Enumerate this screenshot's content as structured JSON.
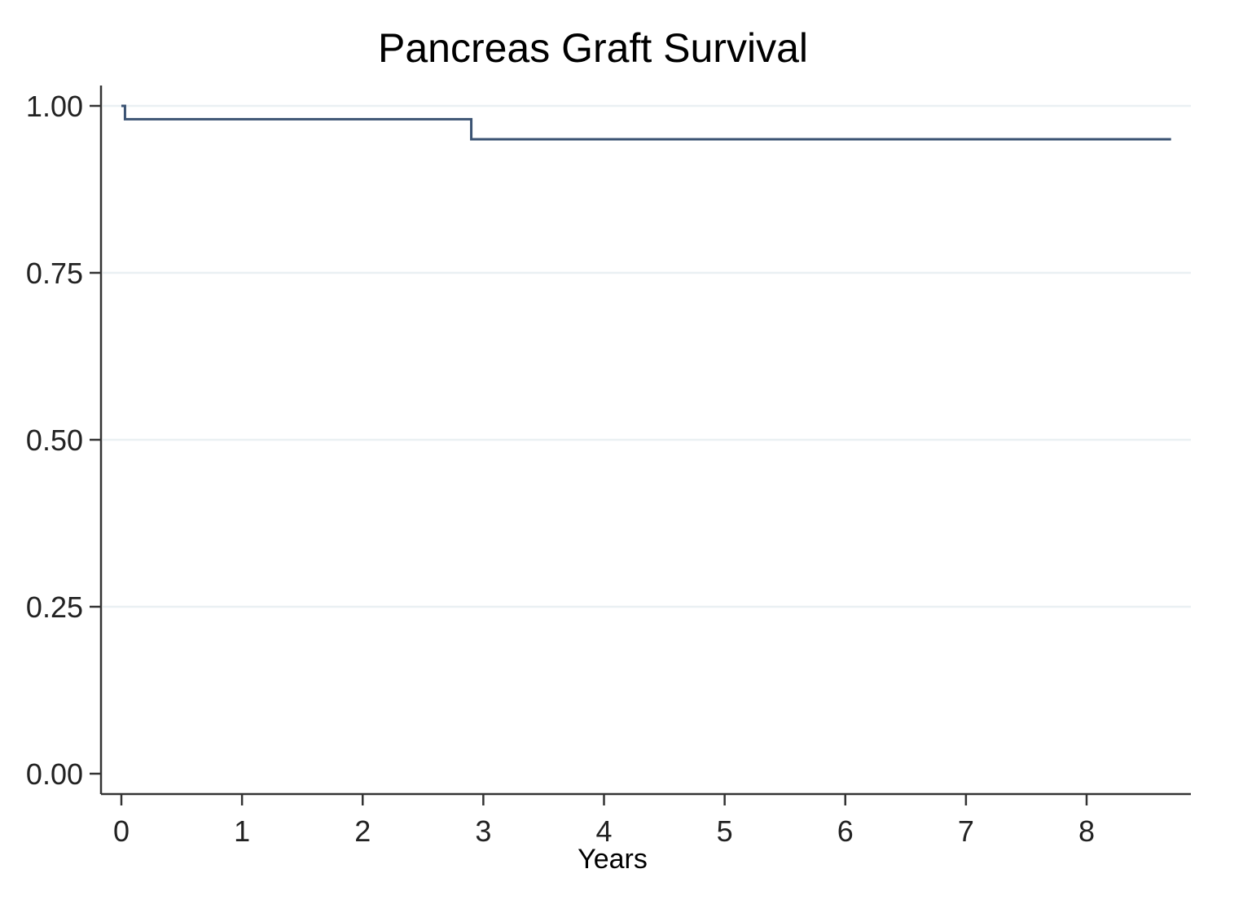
{
  "chart_data": {
    "type": "line",
    "title": "Pancreas Graft Survival",
    "xlabel": "Years",
    "ylabel": "",
    "xlim": [
      0,
      8.7
    ],
    "ylim": [
      0,
      1
    ],
    "x_ticks": [
      0,
      1,
      2,
      3,
      4,
      5,
      6,
      7,
      8
    ],
    "x_tick_labels": [
      "0",
      "1",
      "2",
      "3",
      "4",
      "5",
      "6",
      "7",
      "8"
    ],
    "y_ticks": [
      0,
      0.25,
      0.5,
      0.75,
      1
    ],
    "y_tick_labels": [
      "0.00",
      "0.25",
      "0.50",
      "0.75",
      "1.00"
    ],
    "grid": true,
    "legend": "none",
    "series": [
      {
        "step": true,
        "color": "#3b5373",
        "x": [
          0,
          0.03,
          2.9,
          8.7
        ],
        "y": [
          1.0,
          0.98,
          0.95,
          0.95
        ]
      }
    ]
  }
}
